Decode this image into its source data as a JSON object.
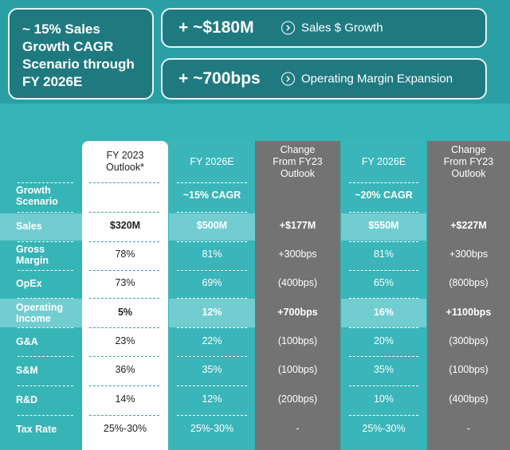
{
  "summary": {
    "scenario_lines": [
      "~ 15% Sales",
      "Growth CAGR",
      "Scenario through",
      "FY 2026E"
    ],
    "metrics": [
      {
        "value": "+ ~$180M",
        "label": "Sales $ Growth",
        "icon": "chevron-circle-icon"
      },
      {
        "value": "+ ~700bps",
        "label": "Operating Margin Expansion",
        "icon": "chevron-circle-icon"
      }
    ]
  },
  "table": {
    "headers": {
      "fy23": [
        "FY 2023",
        "Outlook*"
      ],
      "t1": [
        "FY 2026E"
      ],
      "c1": [
        "Change",
        "From FY23",
        "Outlook"
      ],
      "t2": [
        "FY 2026E"
      ],
      "c2": [
        "Change",
        "From FY23",
        "Outlook"
      ]
    },
    "rows": [
      {
        "label": [
          "Growth",
          "Scenario"
        ],
        "fy23": "",
        "t1": "~15% CAGR",
        "c1": "",
        "t2": "~20% CAGR",
        "c2": ""
      },
      {
        "label": [
          "Sales"
        ],
        "fy23": "$320M",
        "t1": "$500M",
        "c1": "+$177M",
        "t2": "$550M",
        "c2": "+$227M"
      },
      {
        "label": [
          "Gross",
          "Margin"
        ],
        "fy23": "78%",
        "t1": "81%",
        "c1": "+300bps",
        "t2": "81%",
        "c2": "+300bps"
      },
      {
        "label": [
          "OpEx"
        ],
        "fy23": "73%",
        "t1": "69%",
        "c1": "(400bps)",
        "t2": "65%",
        "c2": "(800bps)"
      },
      {
        "label": [
          "Operating",
          "Income"
        ],
        "fy23": "5%",
        "t1": "12%",
        "c1": "+700bps",
        "t2": "16%",
        "c2": "+1100bps"
      },
      {
        "label": [
          "G&A"
        ],
        "fy23": "23%",
        "t1": "22%",
        "c1": "(100bps)",
        "t2": "20%",
        "c2": "(300bps)"
      },
      {
        "label": [
          "S&M"
        ],
        "fy23": "36%",
        "t1": "35%",
        "c1": "(100bps)",
        "t2": "35%",
        "c2": "(100bps)"
      },
      {
        "label": [
          "R&D"
        ],
        "fy23": "14%",
        "t1": "12%",
        "c1": "(200bps)",
        "t2": "10%",
        "c2": "(400bps)"
      },
      {
        "label": [
          "Tax Rate"
        ],
        "fy23": "25%-30%",
        "t1": "25%-30%",
        "c1": "-",
        "t2": "25%-30%",
        "c2": "-"
      }
    ]
  },
  "colors": {
    "background": "#37b4b6",
    "top_band": "#2a9fa4",
    "dark_teal_box": "#1f7a80",
    "gray_column": "#737373",
    "highlight_row": "#72cdd0"
  }
}
